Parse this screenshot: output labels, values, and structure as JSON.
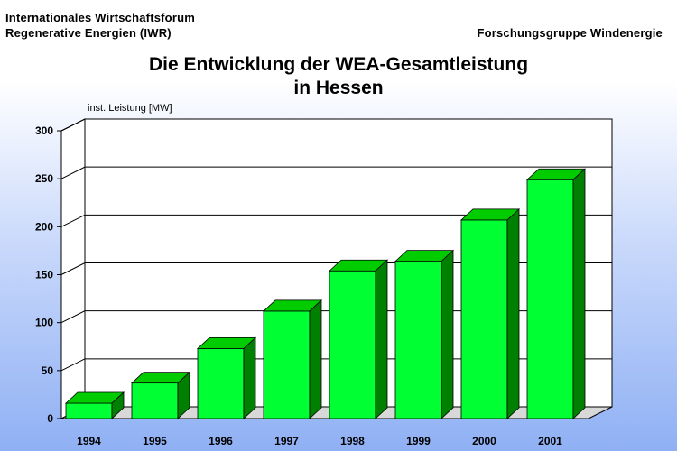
{
  "header": {
    "org_line1": "Internationales Wirtschaftsforum",
    "org_line2": "Regenerative Energien (IWR)",
    "group": "Forschungsgruppe Windenergie"
  },
  "colors": {
    "bar_front": "#00ff33",
    "bar_top": "#00cc00",
    "bar_side": "#008000",
    "grid": "#000000",
    "wall": "#ffffff",
    "rule": "#c00000"
  },
  "chart_data": {
    "type": "bar",
    "title": "Die Entwicklung der WEA-Gesamtleistung",
    "subtitle": "in Hessen",
    "xlabel": "",
    "ylabel": "inst. Leistung [MW]",
    "categories": [
      "1994",
      "1995",
      "1996",
      "1997",
      "1998",
      "1999",
      "2000",
      "2001"
    ],
    "values": [
      16,
      37,
      73,
      112,
      154,
      164,
      207,
      249
    ],
    "ylim": [
      0,
      300
    ],
    "yticks": [
      0,
      50,
      100,
      150,
      200,
      250,
      300
    ],
    "grid": true,
    "legend": "none",
    "style": "3d"
  }
}
